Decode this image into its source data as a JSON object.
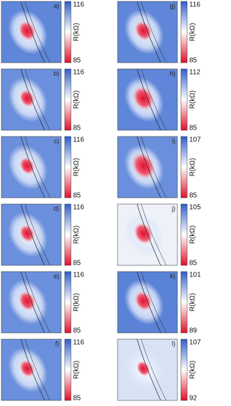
{
  "panels": [
    {
      "label": "a)",
      "max": 116,
      "min": 85,
      "unit": "R(kΩ)"
    },
    {
      "label": "b)",
      "max": 116,
      "min": 85,
      "unit": "R(kΩ)"
    },
    {
      "label": "c)",
      "max": 116,
      "min": 85,
      "unit": "R(kΩ)"
    },
    {
      "label": "d)",
      "max": 116,
      "min": 85,
      "unit": "R(kΩ)"
    },
    {
      "label": "e)",
      "max": 116,
      "min": 85,
      "unit": "R(kΩ)"
    },
    {
      "label": "f)",
      "max": 116,
      "min": 85,
      "unit": "R(kΩ)"
    },
    {
      "label": "g)",
      "max": 116,
      "min": 85,
      "unit": "R(kΩ)"
    },
    {
      "label": "h)",
      "max": 112,
      "min": 85,
      "unit": "R(kΩ)"
    },
    {
      "label": "i)",
      "max": 107,
      "min": 85,
      "unit": "R(kΩ)"
    },
    {
      "label": "j)",
      "max": 105,
      "min": 85,
      "unit": "R(kΩ)"
    },
    {
      "label": "k)",
      "max": 101,
      "min": 89,
      "unit": "R(kΩ)"
    },
    {
      "label": "l)",
      "max": 107,
      "min": 92,
      "unit": "R(kΩ)"
    }
  ]
}
